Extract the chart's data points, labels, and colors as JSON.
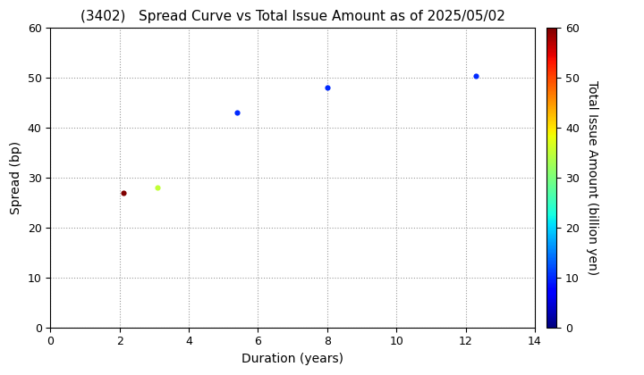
{
  "title": "(3402)   Spread Curve vs Total Issue Amount as of 2025/05/02",
  "xlabel": "Duration (years)",
  "ylabel": "Spread (bp)",
  "colorbar_label": "Total Issue Amount (billion yen)",
  "xlim": [
    0,
    14
  ],
  "ylim": [
    0,
    60
  ],
  "xticks": [
    0,
    2,
    4,
    6,
    8,
    10,
    12,
    14
  ],
  "yticks": [
    0,
    10,
    20,
    30,
    40,
    50,
    60
  ],
  "colorbar_min": 0,
  "colorbar_max": 60,
  "points": [
    {
      "duration": 2.1,
      "spread": 27,
      "amount": 60
    },
    {
      "duration": 3.1,
      "spread": 28,
      "amount": 35
    },
    {
      "duration": 5.4,
      "spread": 43,
      "amount": 10
    },
    {
      "duration": 8.0,
      "spread": 48,
      "amount": 10
    },
    {
      "duration": 12.3,
      "spread": 50.5,
      "amount": 10
    }
  ],
  "marker_size": 20,
  "background_color": "#ffffff",
  "grid_color": "#999999",
  "title_fontsize": 11,
  "axis_label_fontsize": 10,
  "tick_fontsize": 9,
  "colorbar_tick_fontsize": 9
}
